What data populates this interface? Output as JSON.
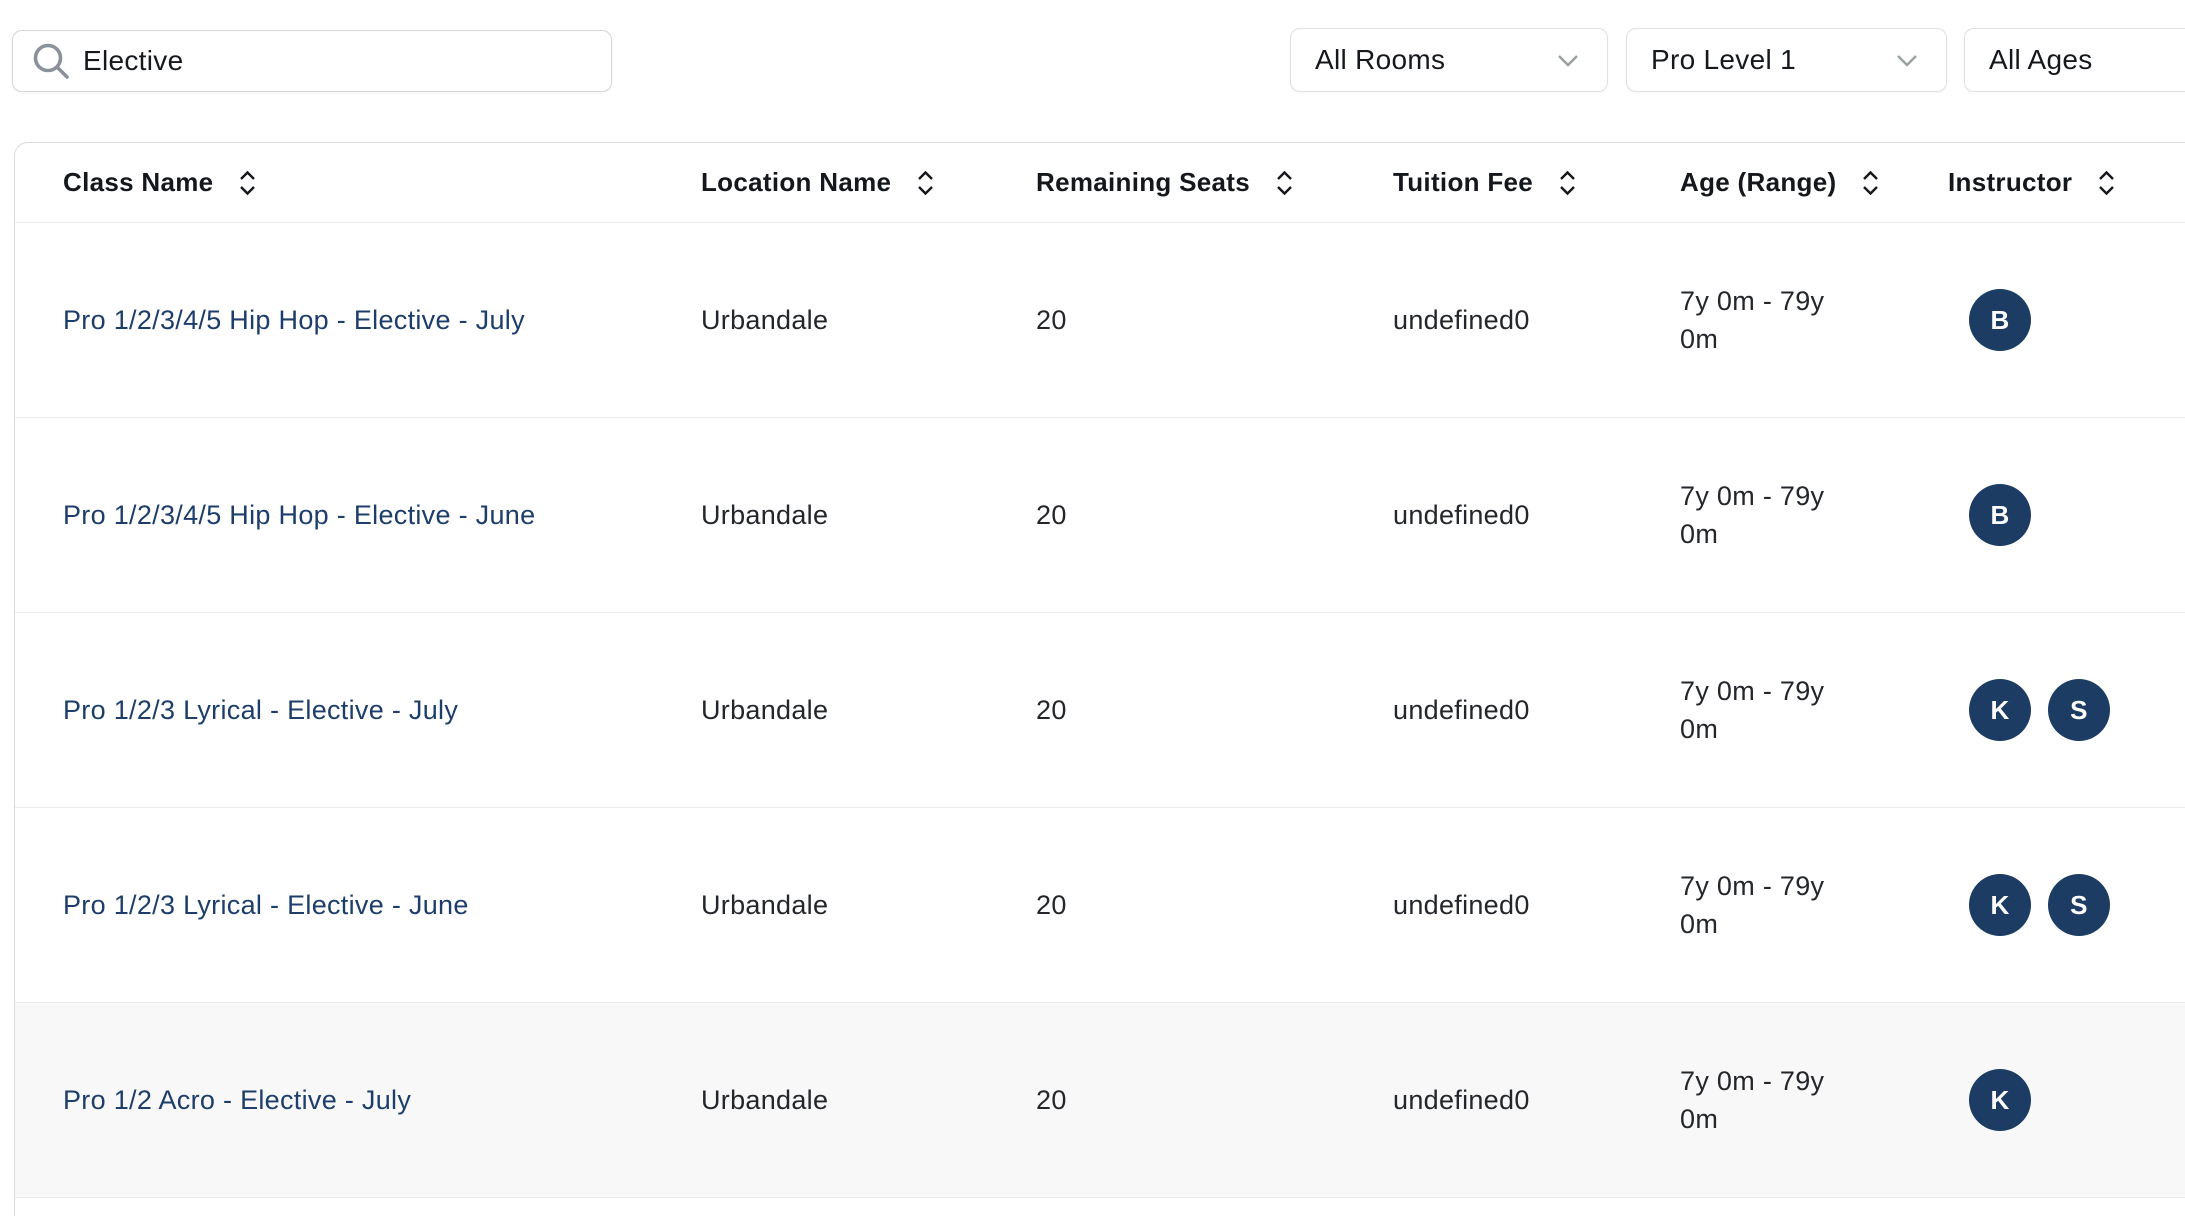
{
  "colors": {
    "accent_navy": "#1d3e6a",
    "avatar_navy": "#1d3c64",
    "row_highlight": "#f8f8f8",
    "border_light": "#ececec"
  },
  "filters": {
    "search": {
      "value": "Elective",
      "icon": "search-icon"
    },
    "dropdowns": [
      {
        "label": "All Rooms",
        "icon": "chevron-down-icon"
      },
      {
        "label": "Pro Level 1",
        "icon": "chevron-down-icon"
      },
      {
        "label": "All Ages",
        "icon": "none"
      }
    ]
  },
  "table": {
    "columns": [
      {
        "label": "Class Name"
      },
      {
        "label": "Location Name"
      },
      {
        "label": "Remaining Seats"
      },
      {
        "label": "Tuition Fee"
      },
      {
        "label": "Age (Range)"
      },
      {
        "label": "Instructor"
      }
    ],
    "rows": [
      {
        "class_name": "Pro 1/2/3/4/5 Hip Hop - Elective - July",
        "location": "Urbandale",
        "remaining_seats": "20",
        "tuition_fee": "undefined0",
        "age_range": "7y 0m - 79y 0m",
        "instructors": [
          "B"
        ],
        "highlighted": false
      },
      {
        "class_name": "Pro 1/2/3/4/5 Hip Hop - Elective - June",
        "location": "Urbandale",
        "remaining_seats": "20",
        "tuition_fee": "undefined0",
        "age_range": "7y 0m - 79y 0m",
        "instructors": [
          "B"
        ],
        "highlighted": false
      },
      {
        "class_name": "Pro 1/2/3 Lyrical - Elective - July",
        "location": "Urbandale",
        "remaining_seats": "20",
        "tuition_fee": "undefined0",
        "age_range": "7y 0m - 79y 0m",
        "instructors": [
          "K",
          "S"
        ],
        "highlighted": false
      },
      {
        "class_name": "Pro 1/2/3 Lyrical - Elective - June",
        "location": "Urbandale",
        "remaining_seats": "20",
        "tuition_fee": "undefined0",
        "age_range": "7y 0m - 79y 0m",
        "instructors": [
          "K",
          "S"
        ],
        "highlighted": false
      },
      {
        "class_name": "Pro 1/2 Acro - Elective - July",
        "location": "Urbandale",
        "remaining_seats": "20",
        "tuition_fee": "undefined0",
        "age_range": "7y 0m - 79y 0m",
        "instructors": [
          "K"
        ],
        "highlighted": true
      }
    ]
  }
}
